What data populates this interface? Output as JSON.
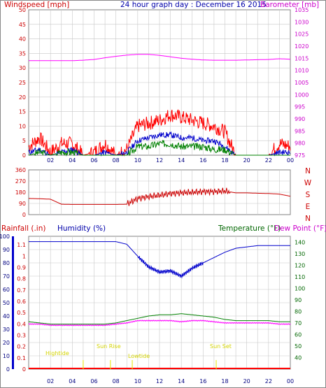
{
  "header": {
    "windspeed_label": "Windspeed [mph]",
    "title": "24 hour graph day : December 16 2015",
    "barometer_label": "Barometer [mb]"
  },
  "panel3_labels": {
    "rainfall": "Rainfall (.in)",
    "humidity": "Humidity (%)",
    "temperature": "Temperature (°F)",
    "dewpoint": "Dew Point (°F)"
  },
  "colors": {
    "wind_gust": "#ff0000",
    "wind_avg": "#0000cc",
    "wind_low": "#008000",
    "barometer": "#ff00ff",
    "direction": "#cc0000",
    "humidity": "#0000cc",
    "temperature": "#008000",
    "dewpoint": "#ff00ff",
    "rain": "#ff0000",
    "tide": "#e8e800",
    "grid": "#c8c8c8"
  },
  "x_ticks": [
    "02",
    "04",
    "06",
    "08",
    "10",
    "12",
    "14",
    "16",
    "18",
    "20",
    "22",
    "00"
  ],
  "chart_data": [
    {
      "type": "line",
      "title": "24 hour graph day : December 16 2015",
      "ylabel": "Windspeed [mph]",
      "ylabel_right": "Barometer [mb]",
      "ylim": [
        0,
        50
      ],
      "ylim_right": [
        975,
        1035
      ],
      "y_ticks": [
        "0",
        "5",
        "10",
        "15",
        "20",
        "25",
        "30",
        "35",
        "40",
        "45",
        "50"
      ],
      "y_ticks_right": [
        "975",
        "980",
        "985",
        "990",
        "995",
        "1000",
        "1005",
        "1010",
        "1015",
        "1020",
        "1025",
        "1030",
        "1035"
      ],
      "x": [
        "00",
        "01",
        "02",
        "03",
        "04",
        "05",
        "06",
        "07",
        "08",
        "09",
        "10",
        "11",
        "12",
        "13",
        "14",
        "15",
        "16",
        "17",
        "18",
        "19",
        "20",
        "21",
        "22",
        "23",
        "24"
      ],
      "series": [
        {
          "key": "gust",
          "values": [
            3,
            6,
            1,
            4,
            4,
            0,
            1,
            4,
            0,
            2,
            10,
            11,
            12,
            14,
            13,
            12,
            11,
            10,
            8,
            0,
            0,
            0,
            0,
            4,
            3
          ]
        },
        {
          "key": "avg",
          "values": [
            1,
            2,
            0,
            1,
            2,
            0,
            0,
            1,
            0,
            1,
            5,
            6,
            7,
            7,
            6,
            6,
            5,
            5,
            3,
            0,
            0,
            0,
            0,
            1,
            1
          ]
        },
        {
          "key": "low",
          "values": [
            0,
            1,
            0,
            1,
            1,
            0,
            0,
            0,
            0,
            0,
            3,
            3,
            4,
            4,
            3,
            3,
            3,
            2,
            2,
            0,
            0,
            0,
            0,
            0,
            0
          ]
        },
        {
          "key": "barometer",
          "values": [
            1014,
            1014,
            1014,
            1014,
            1014,
            1014.2,
            1014.5,
            1015.2,
            1015.8,
            1016.3,
            1016.6,
            1016.6,
            1016.2,
            1015.6,
            1015,
            1014.6,
            1014.3,
            1014.2,
            1014.2,
            1014.2,
            1014.3,
            1014.4,
            1014.5,
            1014.8,
            1014.6
          ]
        }
      ]
    },
    {
      "type": "line",
      "ylim": [
        0,
        360
      ],
      "y_ticks": [
        "0",
        "90",
        "180",
        "270",
        "360"
      ],
      "compass_labels": [
        "N",
        "W",
        "S",
        "E",
        "N"
      ],
      "x": [
        "00",
        "01",
        "02",
        "03",
        "04",
        "05",
        "06",
        "07",
        "08",
        "09",
        "10",
        "11",
        "12",
        "13",
        "14",
        "15",
        "16",
        "17",
        "18",
        "19",
        "20",
        "21",
        "22",
        "23",
        "24"
      ],
      "series": [
        {
          "key": "direction",
          "values": [
            130,
            128,
            124,
            84,
            82,
            82,
            82,
            82,
            82,
            84,
            130,
            145,
            155,
            170,
            175,
            180,
            185,
            185,
            190,
            175,
            175,
            172,
            170,
            165,
            148
          ]
        }
      ]
    },
    {
      "type": "line",
      "ylabel": "Humidity (%)",
      "ylim": [
        0,
        100
      ],
      "y_ticks": [
        "0",
        "10",
        "20",
        "30",
        "40",
        "50",
        "60",
        "70",
        "80",
        "90",
        "100"
      ],
      "y_ticks_rain": [
        "0",
        "0.1",
        "0.2",
        "0.3",
        "0.4",
        "0.5",
        "0.6",
        "0.7",
        "0.8",
        "0.9",
        "1",
        "1.1"
      ],
      "y_ticks_right": [
        "40",
        "50",
        "60",
        "70",
        "80",
        "90",
        "100",
        "110",
        "120",
        "130",
        "140"
      ],
      "ylim_right": [
        30,
        145
      ],
      "annotations": [
        "Hightide",
        "Sun Rise",
        "Lowtide",
        "Sun Set"
      ],
      "x": [
        "00",
        "01",
        "02",
        "03",
        "04",
        "05",
        "06",
        "07",
        "08",
        "09",
        "10",
        "11",
        "12",
        "13",
        "14",
        "15",
        "16",
        "17",
        "18",
        "19",
        "20",
        "21",
        "22",
        "23",
        "24"
      ],
      "series": [
        {
          "key": "humidity",
          "values": [
            96,
            96,
            96,
            96,
            96,
            96,
            96,
            96,
            96,
            94,
            85,
            77,
            73,
            74,
            70,
            76,
            80,
            84,
            88,
            91,
            92,
            93,
            93,
            93,
            93
          ]
        },
        {
          "key": "temperature",
          "values": [
            71,
            70,
            69,
            69,
            69,
            69,
            69,
            69,
            70,
            72,
            74,
            76,
            77,
            77,
            78,
            77,
            76,
            75,
            73,
            72,
            72,
            72,
            72,
            71,
            71
          ]
        },
        {
          "key": "dewpoint",
          "values": [
            69,
            69,
            68,
            68,
            68,
            68,
            68,
            68,
            69,
            70,
            72,
            72,
            72,
            72,
            71,
            72,
            72,
            71,
            70,
            70,
            70,
            70,
            70,
            69,
            69
          ]
        },
        {
          "key": "rain",
          "values": [
            0,
            0,
            0,
            0,
            0,
            0,
            0,
            0,
            0,
            0,
            0,
            0,
            0,
            0,
            0,
            0,
            0,
            0,
            0,
            0,
            0,
            0,
            0,
            0,
            0
          ]
        }
      ]
    }
  ]
}
